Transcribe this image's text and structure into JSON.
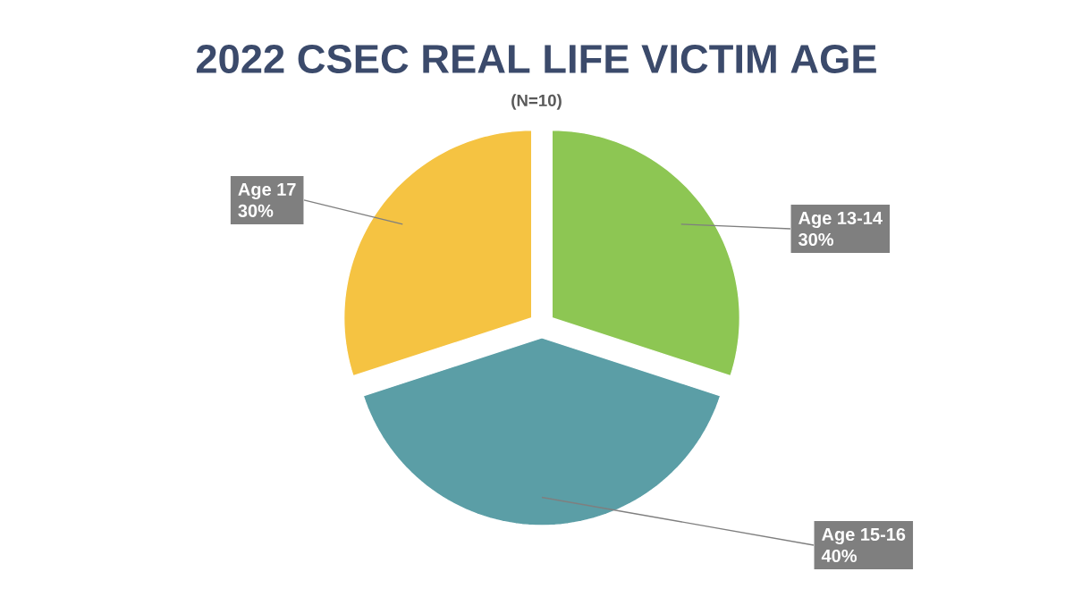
{
  "chart_data": {
    "type": "pie",
    "title": "2022 CSEC REAL LIFE VICTIM AGE",
    "subtitle": "(N=10)",
    "categories": [
      "Age 13-14",
      "Age 15-16",
      "Age 17"
    ],
    "values": [
      30,
      40,
      30
    ],
    "value_labels": [
      "30%",
      "40%",
      "30%"
    ],
    "colors": [
      "#8dc653",
      "#5b9ea6",
      "#f5c342"
    ]
  }
}
